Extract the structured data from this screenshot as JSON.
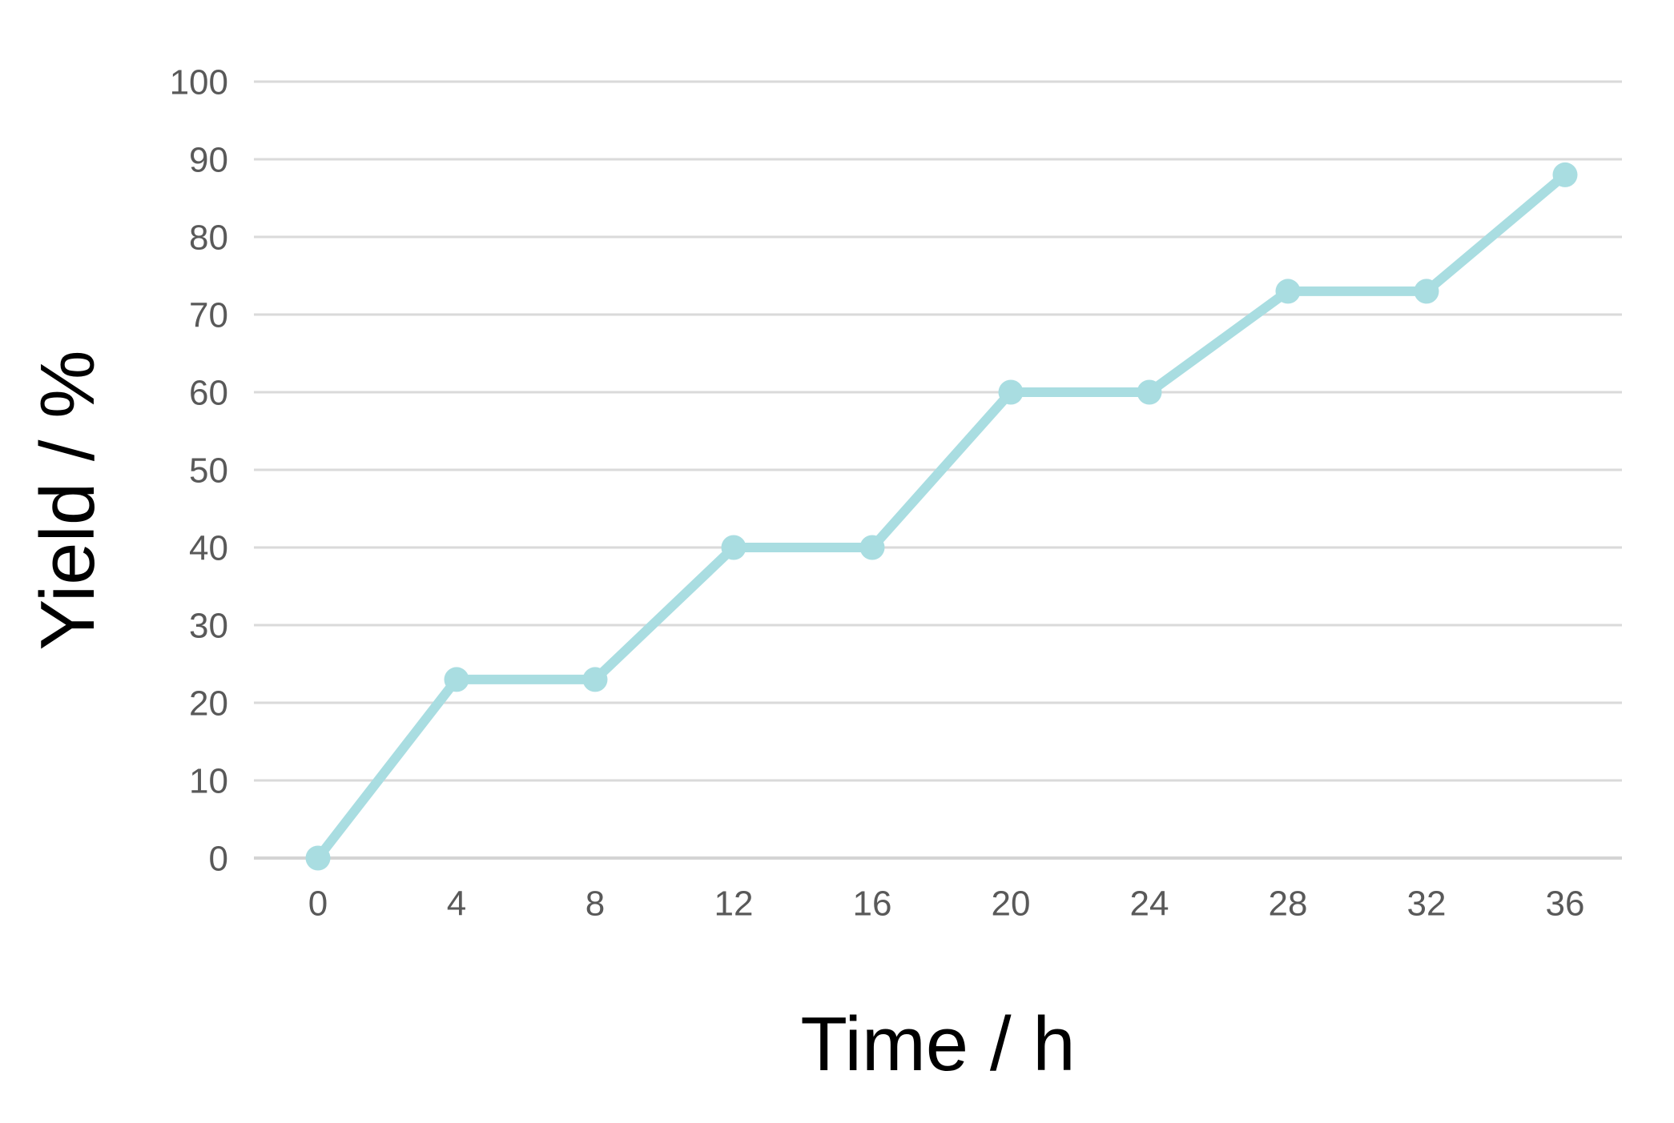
{
  "chart_data": {
    "type": "line",
    "title": "",
    "xlabel": "Time / h",
    "ylabel": "Yield / %",
    "x": [
      0,
      4,
      8,
      12,
      16,
      20,
      24,
      28,
      32,
      36
    ],
    "y": [
      0,
      23,
      23,
      40,
      40,
      60,
      60,
      73,
      73,
      88
    ],
    "x_ticks": [
      0,
      4,
      8,
      12,
      16,
      20,
      24,
      28,
      32,
      36
    ],
    "y_ticks": [
      0,
      10,
      20,
      30,
      40,
      50,
      60,
      70,
      80,
      90,
      100
    ],
    "xlim": [
      0,
      36
    ],
    "ylim": [
      0,
      100
    ],
    "grid": "horizontal",
    "legend_position": "none",
    "marker": "circle",
    "colors": {
      "line": "#a9dde1",
      "marker": "#a9dde1",
      "gridline": "#dadada",
      "baseline": "#d4d4d4",
      "tick_label": "#595959",
      "axis_title": "#000000",
      "background": "#ffffff"
    }
  }
}
